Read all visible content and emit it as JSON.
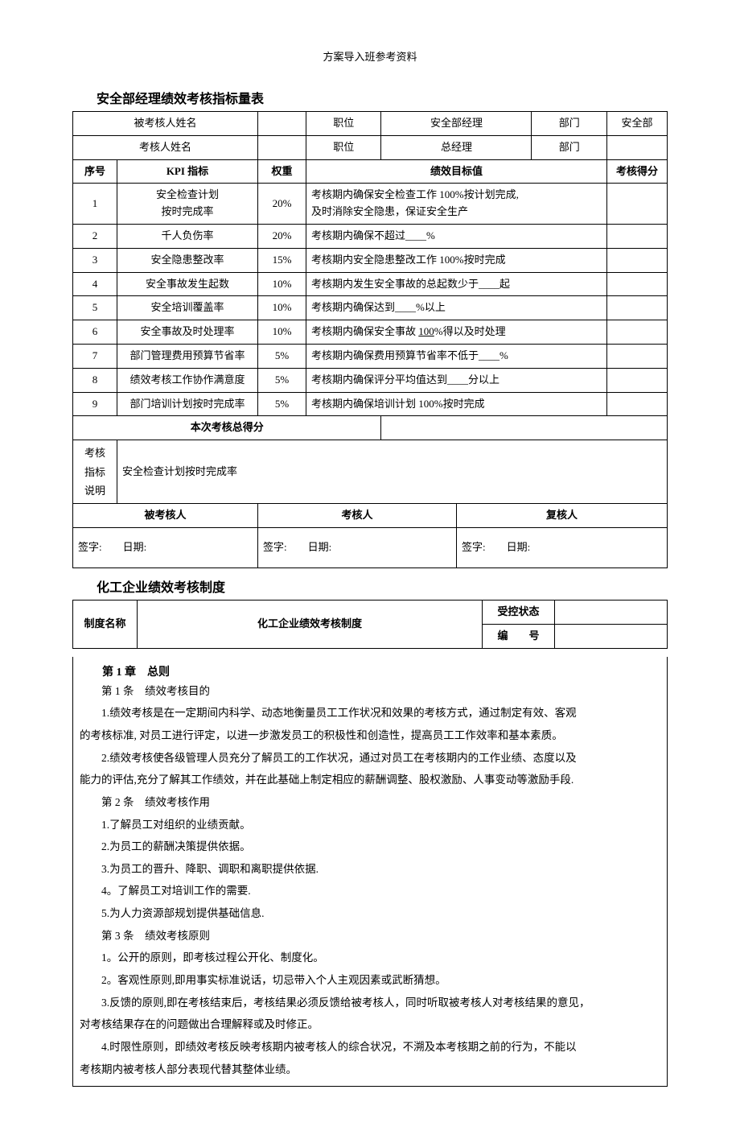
{
  "header": "方案导入班参考资料",
  "section1": {
    "title": "安全部经理绩效考核指标量表",
    "row1": {
      "examinee_label": "被考核人姓名",
      "position_label": "职位",
      "position_value": "安全部经理",
      "dept_label": "部门",
      "dept_value": "安全部"
    },
    "row2": {
      "examiner_label": "考核人姓名",
      "position_label": "职位",
      "position_value": "总经理",
      "dept_label": "部门"
    },
    "headers": {
      "no": "序号",
      "kpi": "KPI 指标",
      "weight": "权重",
      "target": "绩效目标值",
      "score": "考核得分"
    },
    "kpiRows": [
      {
        "no": "1",
        "kpi": "安全检查计划\n按时完成率",
        "weight": "20%",
        "target": "考核期内确保安全检查工作 100%按计划完成,\n及时消除安全隐患，保证安全生产"
      },
      {
        "no": "2",
        "kpi": "千人负伤率",
        "weight": "20%",
        "target": "考核期内确保不超过____%"
      },
      {
        "no": "3",
        "kpi": "安全隐患整改率",
        "weight": "15%",
        "target": "考核期内安全隐患整改工作 100%按时完成"
      },
      {
        "no": "4",
        "kpi": "安全事故发生起数",
        "weight": "10%",
        "target": "考核期内发生安全事故的总起数少于____起"
      },
      {
        "no": "5",
        "kpi": "安全培训覆盖率",
        "weight": "10%",
        "target": "考核期内确保达到____%以上"
      },
      {
        "no": "6",
        "kpi": "安全事故及时处理率",
        "weight": "10%",
        "target_prefix": "考核期内确保安全事故 ",
        "target_underline": "100",
        "target_suffix": "%得以及时处理"
      },
      {
        "no": "7",
        "kpi": "部门管理费用预算节省率",
        "weight": "5%",
        "target": "考核期内确保费用预算节省率不低于____%"
      },
      {
        "no": "8",
        "kpi": "绩效考核工作协作满意度",
        "weight": "5%",
        "target": "考核期内确保评分平均值达到____分以上"
      },
      {
        "no": "9",
        "kpi": "部门培训计划按时完成率",
        "weight": "5%",
        "target": "考核期内确保培训计划 100%按时完成"
      }
    ],
    "total_label": "本次考核总得分",
    "desc_label": "考核\n指标\n说明",
    "desc_value": "安全检查计划按时完成率",
    "sig": {
      "examinee": "被考核人",
      "examiner": "考核人",
      "reviewer": "复核人",
      "sign": "签字:",
      "date": "日期:"
    }
  },
  "section2": {
    "title": "化工企业绩效考核制度",
    "row1": {
      "name_label": "制度名称",
      "name_value": "化工企业绩效考核制度",
      "status_label": "受控状态",
      "code_label": "编　　号"
    },
    "chapter1": "第 1 章　总则",
    "lines": [
      "第 1 条　绩效考核目的",
      "1.绩效考核是在一定期间内科学、动态地衡量员工工作状况和效果的考核方式，通过制定有效、客观",
      "2.绩效考核使各级管理人员充分了解员工的工作状况，通过对员工在考核期内的工作业绩、态度以及",
      "第 2 条　绩效考核作用",
      "1.了解员工对组织的业绩贡献。",
      "2.为员工的薪酬决策提供依据。",
      "3.为员工的晋升、降职、调职和离职提供依据.",
      "4。了解员工对培训工作的需要.",
      "5.为人力资源部规划提供基础信息.",
      "第 3 条　绩效考核原则",
      "1。公开的原则，即考核过程公开化、制度化。",
      "2。客观性原则,即用事实标准说话，切忌带入个人主观因素或武断猜想。",
      "3.反馈的原则,即在考核结束后，考核结果必须反馈给被考核人，同时听取被考核人对考核结果的意见，",
      "4.时限性原则，即绩效考核反映考核期内被考核人的综合状况，不溯及本考核期之前的行为，不能以"
    ],
    "wrap1": "的考核标准, 对员工进行评定，以进一步激发员工的积极性和创造性，提高员工工作效率和基本素质。",
    "wrap2": "能力的评估,充分了解其工作绩效，并在此基础上制定相应的薪酬调整、股权激励、人事变动等激励手段.",
    "wrap3": "对考核结果存在的问题做出合理解释或及时修正。",
    "wrap4": "考核期内被考核人部分表现代替其整体业绩。"
  }
}
